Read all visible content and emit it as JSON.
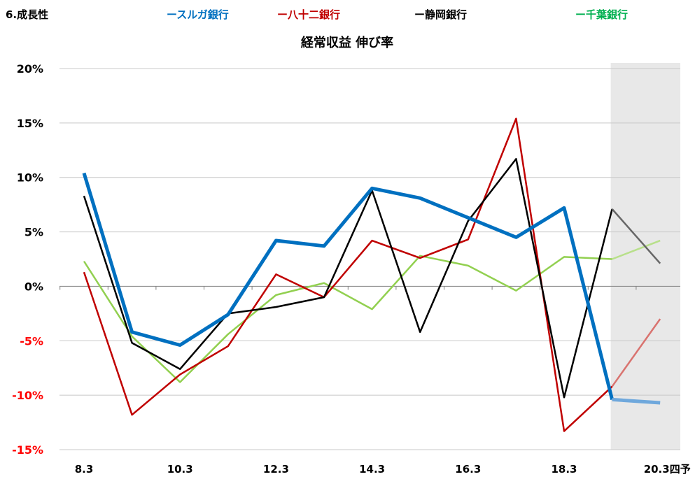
{
  "section_label": "6.成長性",
  "legend": [
    {
      "label": "ースルガ銀行",
      "color": "#0070C0"
    },
    {
      "label": "ー八十二銀行",
      "color": "#C00000"
    },
    {
      "label": "ー静岡銀行",
      "color": "#000000"
    },
    {
      "label": "ー千葉銀行",
      "color": "#00B050"
    }
  ],
  "chart_data": {
    "type": "line",
    "title": "経常収益 伸び率",
    "xlabel": "",
    "ylabel": "",
    "x": [
      "8.3",
      "9.3",
      "10.3",
      "11.3",
      "12.3",
      "13.3",
      "14.3",
      "15.3",
      "16.3",
      "17.3",
      "18.3",
      "19.3",
      "20.3四予"
    ],
    "x_tick_labels_shown": [
      "8.3",
      "10.3",
      "12.3",
      "14.3",
      "16.3",
      "18.3",
      "20.3四予"
    ],
    "ylim": [
      -15,
      20
    ],
    "y_ticks": [
      20,
      15,
      10,
      5,
      0,
      -5,
      -10,
      -15
    ],
    "y_tick_labels": [
      "20%",
      "15%",
      "10%",
      "5%",
      "0%",
      "-5%",
      "-10%",
      "-15%"
    ],
    "negative_tick_color": "#FF0000",
    "forecast_shading_from_index": 11,
    "forecast_shading_color": "#E8E8E8",
    "grid": "horizontal",
    "series": [
      {
        "name": "スルガ銀行",
        "color": "#0070C0",
        "forecast_color": "#6FA8DC",
        "values": [
          10.4,
          -4.2,
          -5.4,
          -2.6,
          4.2,
          3.7,
          9.0,
          8.1,
          6.3,
          4.5,
          7.2,
          -10.4,
          -10.7
        ]
      },
      {
        "name": "八十二銀行",
        "color": "#C00000",
        "forecast_color": "#D9736F",
        "values": [
          1.3,
          -11.8,
          -8.1,
          -5.5,
          1.1,
          -1.0,
          4.2,
          2.6,
          4.3,
          15.4,
          -13.3,
          -9.2,
          -3.0
        ]
      },
      {
        "name": "静岡銀行",
        "color": "#000000",
        "forecast_color": "#666666",
        "values": [
          8.3,
          -5.2,
          -7.6,
          -2.5,
          -1.9,
          -1.0,
          8.8,
          -4.2,
          6.0,
          11.7,
          -10.2,
          7.1,
          2.1
        ]
      },
      {
        "name": "千葉銀行",
        "color": "#92D050",
        "forecast_color": "#B8E08A",
        "values": [
          2.3,
          -4.6,
          -8.8,
          -4.4,
          -0.8,
          0.3,
          -2.1,
          2.8,
          1.9,
          -0.4,
          2.7,
          2.5,
          4.2
        ]
      }
    ]
  }
}
